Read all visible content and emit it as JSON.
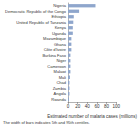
{
  "chart_data": {
    "type": "bar",
    "orientation": "horizontal",
    "categories": [
      "Nigeria",
      "Democratic Republic of the Congo",
      "Ethiopia",
      "United Republic of Tanzania",
      "Kenya",
      "Uganda",
      "Mozambique",
      "Ghana",
      "Côte d'Ivoire",
      "Burkina Faso",
      "Niger",
      "Cameroon",
      "Malawi",
      "Mali",
      "Chad",
      "Zambia",
      "Angola",
      "Rwanda"
    ],
    "values": [
      57,
      23,
      12,
      11,
      10,
      10,
      7,
      7,
      7,
      5,
      5,
      5,
      5,
      4,
      3,
      3,
      3,
      2
    ],
    "color": "#8fa6cc",
    "x_label": "Estimated number of malaria cases (millions)",
    "annotation": "The width of bars indicates 5th and 95th centiles.",
    "xlim": [
      0,
      100
    ],
    "xticks": [
      0,
      20,
      40,
      60,
      80,
      100
    ],
    "grid": false
  }
}
